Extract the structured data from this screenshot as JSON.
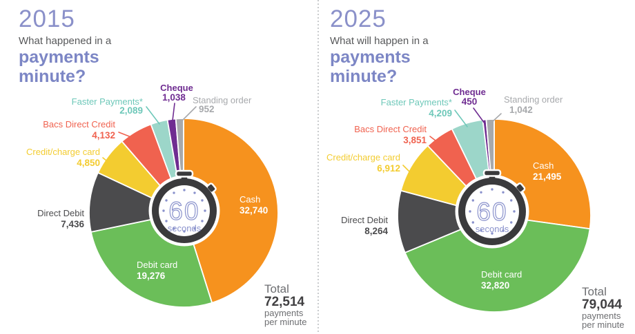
{
  "panels": [
    {
      "year": "2015",
      "subtitle": "What happened in a",
      "title_line1": "payments",
      "title_line2": "minute?",
      "stopwatch": {
        "number": "60",
        "label": "seconds"
      },
      "total": {
        "label": "Total",
        "value": "72,514",
        "sub1": "payments",
        "sub2": "per minute"
      }
    },
    {
      "year": "2025",
      "subtitle": "What will happen in a",
      "title_line1": "payments",
      "title_line2": "minute?",
      "stopwatch": {
        "number": "60",
        "label": "seconds"
      },
      "total": {
        "label": "Total",
        "value": "79,044",
        "sub1": "payments",
        "sub2": "per minute"
      }
    }
  ],
  "chart_data": [
    {
      "type": "pie",
      "title": "2015 - What happened in a payments minute?",
      "units": "payments per minute",
      "total": 72514,
      "start_angle_deg": 0,
      "direction": "clockwise",
      "slices": [
        {
          "label": "Cash",
          "value": 32740,
          "display": "32,740",
          "color": "#F6921E",
          "label_placement": "inside"
        },
        {
          "label": "Debit card",
          "value": 19276,
          "display": "19,276",
          "color": "#6BBE59",
          "label_placement": "inside"
        },
        {
          "label": "Direct Debit",
          "value": 7436,
          "display": "7,436",
          "color": "#4B4B4D",
          "label_placement": "outside"
        },
        {
          "label": "Credit/charge card",
          "value": 4850,
          "display": "4,850",
          "color": "#F3CC30",
          "label_placement": "outside"
        },
        {
          "label": "Bacs Direct Credit",
          "value": 4132,
          "display": "4,132",
          "color": "#F0624F",
          "label_placement": "outside"
        },
        {
          "label": "Faster Payments*",
          "value": 2089,
          "display": "2,089",
          "color": "#9CD6C9",
          "label_color": "#6EC8B9",
          "label_placement": "outside"
        },
        {
          "label": "Cheque",
          "value": 1038,
          "display": "1,038",
          "color": "#6F2C91",
          "label_placement": "outside"
        },
        {
          "label": "Standing order",
          "value": 952,
          "display": "952",
          "color": "#A7A9AC",
          "label_placement": "outside"
        }
      ]
    },
    {
      "type": "pie",
      "title": "2025 - What will happen in a payments minute?",
      "units": "payments per minute",
      "total": 79044,
      "start_angle_deg": 0,
      "direction": "clockwise",
      "slices": [
        {
          "label": "Cash",
          "value": 21495,
          "display": "21,495",
          "color": "#F6921E",
          "label_placement": "inside"
        },
        {
          "label": "Debit card",
          "value": 32820,
          "display": "32,820",
          "color": "#6BBE59",
          "label_placement": "inside"
        },
        {
          "label": "Direct Debit",
          "value": 8264,
          "display": "8,264",
          "color": "#4B4B4D",
          "label_placement": "outside"
        },
        {
          "label": "Credit/charge card",
          "value": 6912,
          "display": "6,912",
          "color": "#F3CC30",
          "label_placement": "outside"
        },
        {
          "label": "Bacs Direct Credit",
          "value": 3851,
          "display": "3,851",
          "color": "#F0624F",
          "label_placement": "outside"
        },
        {
          "label": "Faster Payments*",
          "value": 4209,
          "display": "4,209",
          "color": "#9CD6C9",
          "label_color": "#6EC8B9",
          "label_placement": "outside"
        },
        {
          "label": "Cheque",
          "value": 450,
          "display": "450",
          "color": "#6F2C91",
          "label_placement": "outside"
        },
        {
          "label": "Standing order",
          "value": 1042,
          "display": "1,042",
          "color": "#A7A9AC",
          "label_placement": "outside"
        }
      ]
    }
  ],
  "colors": {
    "heading_year": "#8A90C9",
    "heading_title": "#7C86C5",
    "subtitle_text": "#57585A",
    "total_text": "#414042",
    "stopwatch_body": "#3A3A3C",
    "stopwatch_accent": "#8A92CC"
  }
}
